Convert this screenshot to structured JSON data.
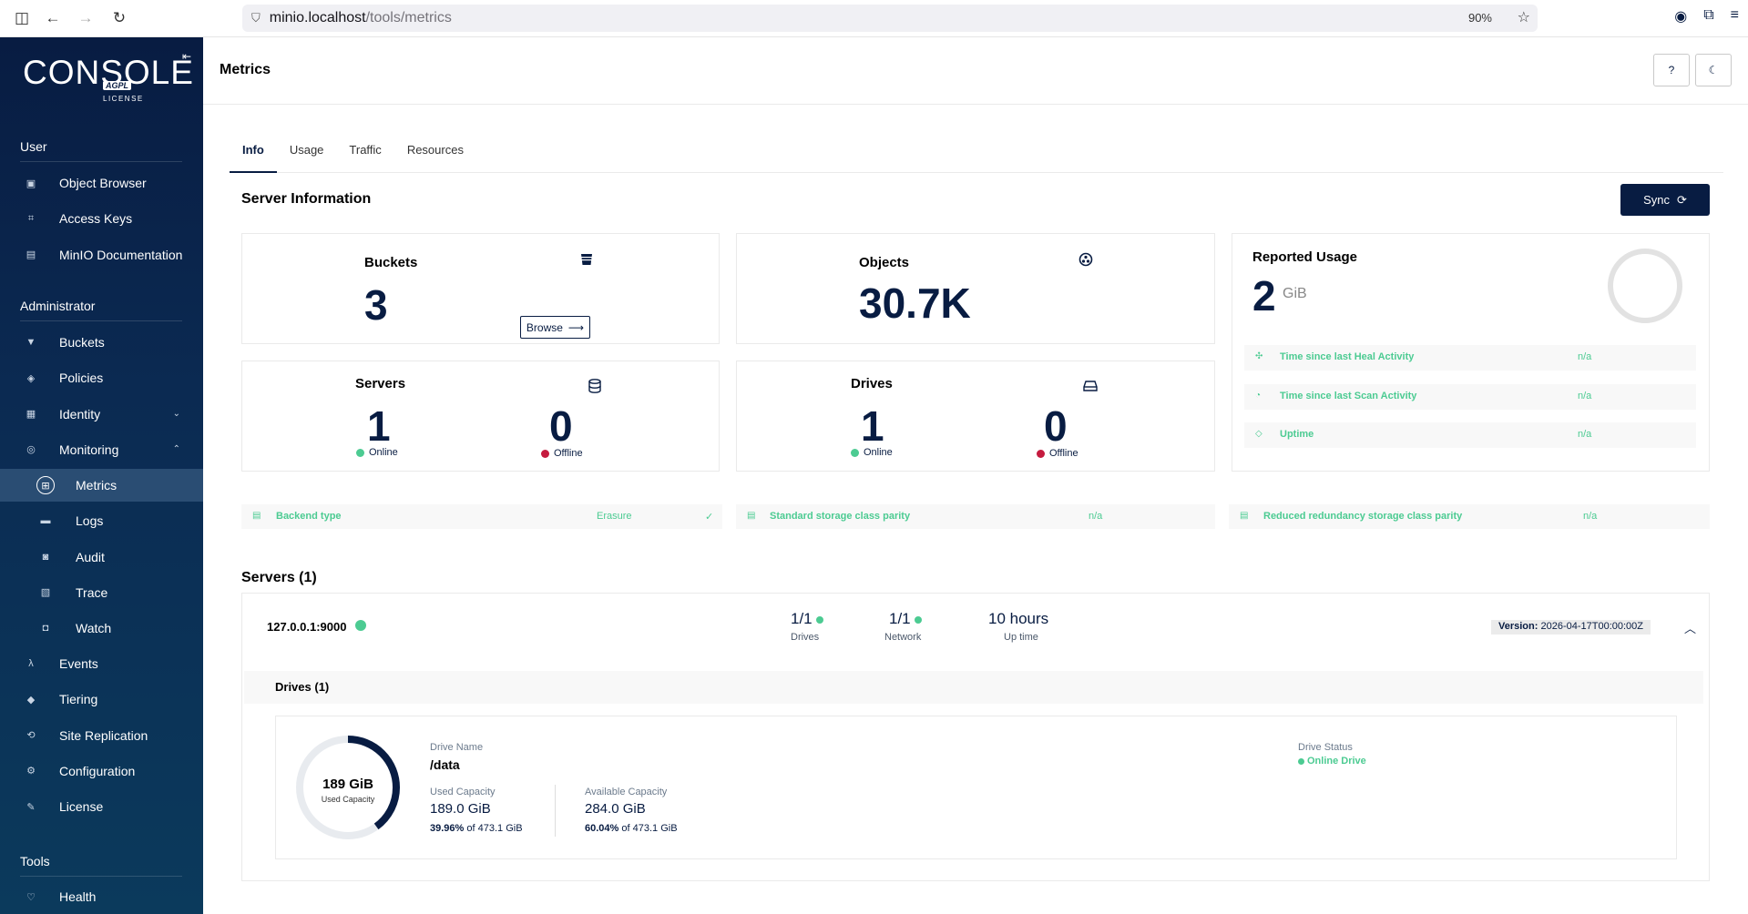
{
  "browser": {
    "url_host": "minio.localhost",
    "url_path": "/tools/metrics",
    "zoom": "90%"
  },
  "sidebar": {
    "logo": "CONSOLE",
    "logo_badge": "AGPL",
    "logo_sub": "LICENSE",
    "user_title": "User",
    "user_items": [
      {
        "label": "Object Browser",
        "icon": "object-browser-icon"
      },
      {
        "label": "Access Keys",
        "icon": "access-keys-icon"
      },
      {
        "label": "MinIO Documentation",
        "icon": "documentation-icon"
      }
    ],
    "admin_title": "Administrator",
    "admin_items": [
      {
        "label": "Buckets",
        "icon": "buckets-icon"
      },
      {
        "label": "Policies",
        "icon": "policies-icon"
      },
      {
        "label": "Identity",
        "icon": "identity-icon",
        "chevron": "down"
      },
      {
        "label": "Monitoring",
        "icon": "monitoring-icon",
        "chevron": "up"
      }
    ],
    "monitoring_items": [
      {
        "label": "Metrics",
        "icon": "metrics-icon",
        "active": true
      },
      {
        "label": "Logs",
        "icon": "logs-icon"
      },
      {
        "label": "Audit",
        "icon": "audit-icon"
      },
      {
        "label": "Trace",
        "icon": "trace-icon"
      },
      {
        "label": "Watch",
        "icon": "watch-icon"
      }
    ],
    "admin_items_2": [
      {
        "label": "Events",
        "icon": "lambda-icon"
      },
      {
        "label": "Tiering",
        "icon": "tiering-icon"
      },
      {
        "label": "Site Replication",
        "icon": "site-replication-icon"
      },
      {
        "label": "Configuration",
        "icon": "configuration-icon"
      },
      {
        "label": "License",
        "icon": "license-icon"
      }
    ],
    "tools_title": "Tools",
    "tools_items": [
      {
        "label": "Health",
        "icon": "health-icon"
      }
    ]
  },
  "header": {
    "title": "Metrics"
  },
  "tabs": [
    "Info",
    "Usage",
    "Traffic",
    "Resources"
  ],
  "server_info": {
    "title": "Server Information",
    "sync_label": "Sync",
    "buckets": {
      "title": "Buckets",
      "value": "3",
      "browse_label": "Browse"
    },
    "objects": {
      "title": "Objects",
      "value": "30.7K"
    },
    "reported_usage": {
      "title": "Reported Usage",
      "value": "2",
      "unit": "GiB",
      "rows": [
        {
          "label": "Time since last Heal Activity",
          "value": "n/a"
        },
        {
          "label": "Time since last Scan Activity",
          "value": "n/a"
        },
        {
          "label": "Uptime",
          "value": "n/a"
        }
      ]
    },
    "servers": {
      "title": "Servers",
      "online": "1",
      "offline": "0",
      "online_label": "Online",
      "offline_label": "Offline"
    },
    "drives": {
      "title": "Drives",
      "online": "1",
      "offline": "0",
      "online_label": "Online",
      "offline_label": "Offline"
    }
  },
  "info_rows": [
    {
      "label": "Backend type",
      "value": "Erasure"
    },
    {
      "label": "Standard storage class parity",
      "value": "n/a"
    },
    {
      "label": "Reduced redundancy storage class parity",
      "value": "n/a"
    }
  ],
  "servers_section": {
    "title": "Servers (1)",
    "server": {
      "address": "127.0.0.1:9000",
      "drives_value": "1/1",
      "drives_label": "Drives",
      "network_value": "1/1",
      "network_label": "Network",
      "uptime_value": "10 hours",
      "uptime_label": "Up time",
      "version_label": "Version:",
      "version_value": "2026-04-17T00:00:00Z"
    },
    "drives_title": "Drives (1)",
    "drive": {
      "used_display": "189 GiB",
      "used_display_label": "Used Capacity",
      "used_fraction": 0.3996,
      "name_label": "Drive Name",
      "name": "/data",
      "used_label": "Used Capacity",
      "used_value": "189.0 GiB",
      "used_pct": "39.96%",
      "used_of": "of 473.1 GiB",
      "avail_label": "Available Capacity",
      "avail_value": "284.0 GiB",
      "avail_pct": "60.04%",
      "avail_of": "of 473.1 GiB",
      "status_label": "Drive Status",
      "status_value": "Online Drive"
    }
  },
  "colors": {
    "navy": "#081c42",
    "online": "#4ccb92",
    "offline": "#c51b3f"
  }
}
